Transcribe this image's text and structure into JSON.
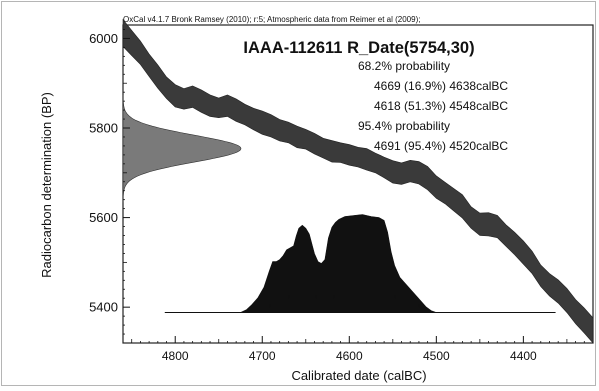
{
  "chart_data": {
    "type": "area",
    "credit": "OxCal v4.1.7 Bronk Ramsey (2010); r:5; Atmospheric data from Reimer et al (2009);",
    "title": "IAAA-112611 R_Date(5754,30)",
    "xlabel": "Calibrated date (calBC)",
    "ylabel": "Radiocarbon determination (BP)",
    "xlim": [
      4860,
      4320
    ],
    "ylim": [
      5320,
      6030
    ],
    "x_direction": "descending",
    "xticks": [
      4800,
      4700,
      4600,
      4500,
      4400
    ],
    "yticks": [
      5400,
      5600,
      5800,
      6000
    ],
    "probability_text": [
      "68.2% probability",
      "4669 (16.9%) 4638calBC",
      "4618 (51.3%) 4548calBC",
      "95.4% probability",
      "4691 (95.4%) 4520calBC"
    ],
    "radiocarbon_date": {
      "mean": 5754,
      "error": 30,
      "fill": "#7a7a7a"
    },
    "calibration_curve": {
      "color": "#3a3a3a",
      "points": [
        [
          4860,
          6012,
          30
        ],
        [
          4850,
          5990,
          28
        ],
        [
          4840,
          5968,
          26
        ],
        [
          4830,
          5940,
          25
        ],
        [
          4820,
          5915,
          26
        ],
        [
          4810,
          5890,
          24
        ],
        [
          4800,
          5872,
          25
        ],
        [
          4790,
          5865,
          23
        ],
        [
          4780,
          5870,
          24
        ],
        [
          4770,
          5860,
          25
        ],
        [
          4760,
          5850,
          24
        ],
        [
          4750,
          5845,
          22
        ],
        [
          4740,
          5850,
          24
        ],
        [
          4730,
          5840,
          25
        ],
        [
          4720,
          5830,
          23
        ],
        [
          4710,
          5820,
          24
        ],
        [
          4700,
          5812,
          26
        ],
        [
          4690,
          5805,
          25
        ],
        [
          4680,
          5795,
          24
        ],
        [
          4670,
          5790,
          23
        ],
        [
          4660,
          5780,
          24
        ],
        [
          4650,
          5775,
          22
        ],
        [
          4640,
          5765,
          23
        ],
        [
          4630,
          5755,
          22
        ],
        [
          4620,
          5748,
          24
        ],
        [
          4610,
          5745,
          22
        ],
        [
          4600,
          5740,
          23
        ],
        [
          4590,
          5735,
          22
        ],
        [
          4580,
          5730,
          24
        ],
        [
          4570,
          5722,
          22
        ],
        [
          4560,
          5712,
          23
        ],
        [
          4550,
          5702,
          25
        ],
        [
          4540,
          5698,
          24
        ],
        [
          4530,
          5704,
          24
        ],
        [
          4520,
          5700,
          25
        ],
        [
          4510,
          5688,
          26
        ],
        [
          4500,
          5668,
          25
        ],
        [
          4490,
          5655,
          24
        ],
        [
          4480,
          5640,
          25
        ],
        [
          4470,
          5625,
          26
        ],
        [
          4460,
          5600,
          24
        ],
        [
          4450,
          5585,
          25
        ],
        [
          4440,
          5585,
          26
        ],
        [
          4430,
          5580,
          25
        ],
        [
          4420,
          5560,
          24
        ],
        [
          4410,
          5542,
          25
        ],
        [
          4400,
          5522,
          26
        ],
        [
          4390,
          5500,
          25
        ],
        [
          4380,
          5470,
          24
        ],
        [
          4370,
          5450,
          25
        ],
        [
          4360,
          5435,
          26
        ],
        [
          4350,
          5415,
          27
        ],
        [
          4340,
          5390,
          27
        ],
        [
          4330,
          5370,
          28
        ],
        [
          4320,
          5348,
          28
        ]
      ]
    },
    "calibrated_distribution": {
      "fill": "#111111",
      "baseline_y": 5388,
      "baseline_range": [
        4812,
        4363
      ],
      "points": [
        [
          4725,
          0.0
        ],
        [
          4718,
          0.03
        ],
        [
          4712,
          0.08
        ],
        [
          4705,
          0.15
        ],
        [
          4698,
          0.26
        ],
        [
          4692,
          0.42
        ],
        [
          4688,
          0.52
        ],
        [
          4684,
          0.52
        ],
        [
          4680,
          0.54
        ],
        [
          4676,
          0.58
        ],
        [
          4672,
          0.64
        ],
        [
          4668,
          0.66
        ],
        [
          4664,
          0.68
        ],
        [
          4661,
          0.78
        ],
        [
          4658,
          0.86
        ],
        [
          4654,
          0.89
        ],
        [
          4650,
          0.86
        ],
        [
          4646,
          0.8
        ],
        [
          4643,
          0.7
        ],
        [
          4640,
          0.6
        ],
        [
          4636,
          0.52
        ],
        [
          4632,
          0.5
        ],
        [
          4628,
          0.54
        ],
        [
          4624,
          0.76
        ],
        [
          4620,
          0.87
        ],
        [
          4616,
          0.92
        ],
        [
          4612,
          0.95
        ],
        [
          4605,
          0.98
        ],
        [
          4595,
          0.99
        ],
        [
          4585,
          1.0
        ],
        [
          4575,
          0.98
        ],
        [
          4566,
          0.97
        ],
        [
          4560,
          0.94
        ],
        [
          4556,
          0.82
        ],
        [
          4552,
          0.62
        ],
        [
          4548,
          0.48
        ],
        [
          4542,
          0.36
        ],
        [
          4534,
          0.28
        ],
        [
          4526,
          0.2
        ],
        [
          4518,
          0.12
        ],
        [
          4512,
          0.06
        ],
        [
          4506,
          0.02
        ],
        [
          4500,
          0.0
        ]
      ]
    },
    "intervals_68": [
      [
        4669,
        4638
      ],
      [
        4618,
        4548
      ]
    ],
    "intervals_95": [
      [
        4691,
        4520
      ]
    ],
    "grid": false,
    "legend": "none"
  }
}
